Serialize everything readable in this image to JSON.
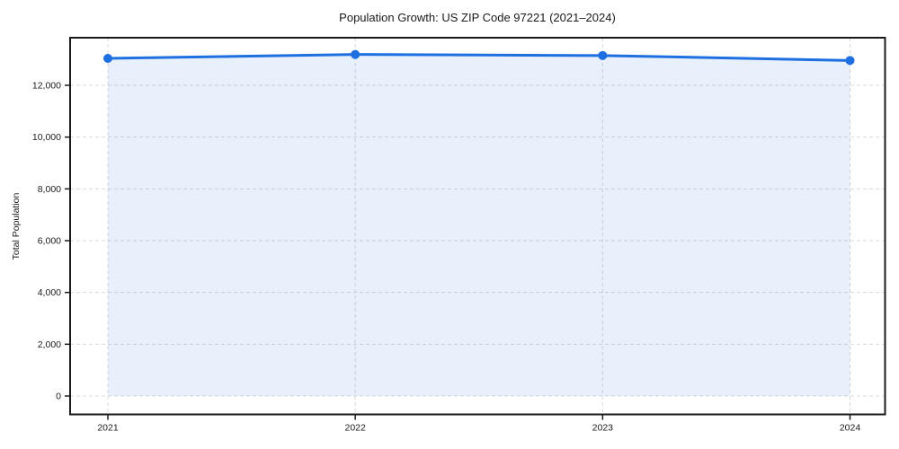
{
  "chart_data": {
    "type": "area",
    "title": "Population Growth: US ZIP Code 97221 (2021–2024)",
    "xlabel": "",
    "ylabel": "Total Population",
    "categories": [
      "2021",
      "2022",
      "2023",
      "2024"
    ],
    "series": [
      {
        "name": "Total Population",
        "values": [
          13040,
          13190,
          13150,
          12960
        ]
      }
    ],
    "y_ticks": [
      0,
      2000,
      4000,
      6000,
      8000,
      10000,
      12000
    ],
    "ylim": [
      -711,
      13838
    ],
    "grid": true,
    "legend": false,
    "marker": "circle",
    "colors": {
      "line": "#1e6fe0",
      "marker": "#1e6fe0",
      "fill_rgba": "rgba(30,111,224,0.10)",
      "grid": "#d9d9d9",
      "axis": "#1a1a1a",
      "text": "#1a1a1a",
      "background": "#ffffff"
    }
  }
}
